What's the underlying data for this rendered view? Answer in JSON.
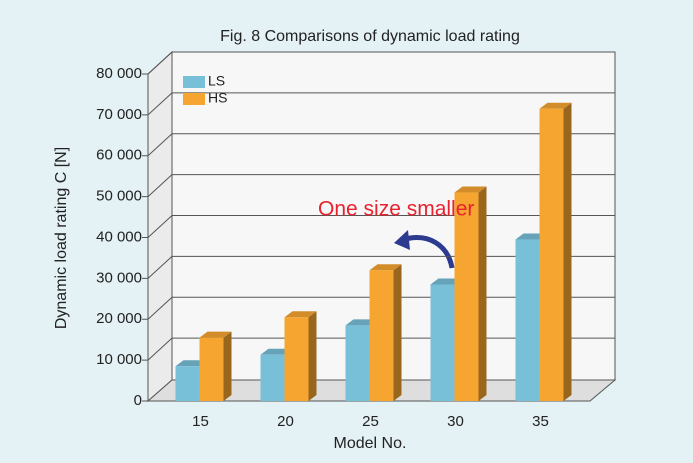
{
  "chart_data": {
    "type": "bar3d",
    "title": "Fig. 8  Comparisons of dynamic load rating",
    "x_label": "Model No.",
    "y_label": "Dynamic load rating C [N]",
    "annotation": "One size smaller",
    "categories": [
      "15",
      "20",
      "25",
      "30",
      "35"
    ],
    "series": [
      {
        "name": "LS",
        "color": "#78bfd8",
        "values": [
          8500,
          11300,
          18500,
          28500,
          39500
        ]
      },
      {
        "name": "HS",
        "color": "#f7a531",
        "values": [
          15500,
          20500,
          32000,
          51000,
          71500
        ]
      }
    ],
    "ylim": [
      0,
      80000
    ],
    "yticks": [
      0,
      {
        "value": 10000,
        "label": "10 000"
      },
      {
        "value": 20000,
        "label": "20 000"
      },
      {
        "value": 30000,
        "label": "30 000"
      },
      {
        "value": 40000,
        "label": "40 000"
      },
      {
        "value": 50000,
        "label": "50 000"
      },
      {
        "value": 60000,
        "label": "60 000"
      },
      {
        "value": 70000,
        "label": "70 000"
      },
      {
        "value": 80000,
        "label": "80 000"
      }
    ],
    "grid": true,
    "legend": "top-left"
  }
}
